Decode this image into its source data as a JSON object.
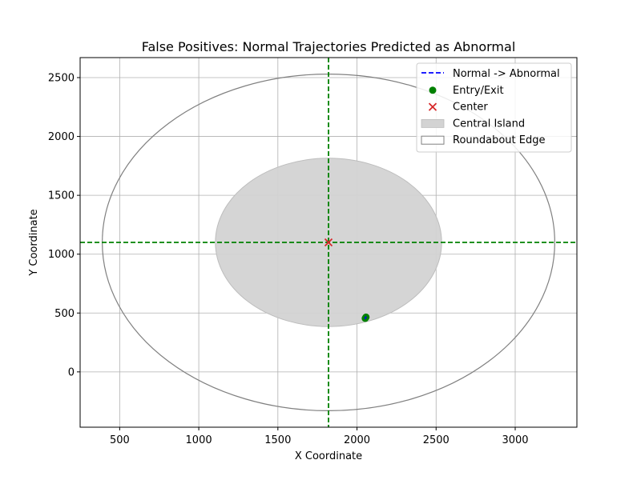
{
  "chart_data": {
    "type": "scatter",
    "title": "False Positives: Normal Trajectories Predicted as Abnormal",
    "xlabel": "X Coordinate",
    "ylabel": "Y Coordinate",
    "xlim": [
      250,
      3390
    ],
    "ylim": [
      -470,
      2670
    ],
    "xticks": [
      500,
      1000,
      1500,
      2000,
      2500,
      3000
    ],
    "yticks": [
      0,
      500,
      1000,
      1500,
      2000,
      2500
    ],
    "grid": true,
    "legend_position": "top-right",
    "center": {
      "x": 1820,
      "y": 1100
    },
    "central_island": {
      "cx": 1820,
      "cy": 1100,
      "rx": 715,
      "ry": 715
    },
    "roundabout_edge": {
      "cx": 1820,
      "cy": 1100,
      "rx": 1430,
      "ry": 1430
    },
    "center_lines": {
      "x": 1820,
      "y": 1100
    },
    "series": [
      {
        "name": "Normal -> Abnormal",
        "kind": "line",
        "color": "#0000ff",
        "points": [
          [
            2050,
            450
          ],
          [
            2058,
            470
          ]
        ]
      },
      {
        "name": "Entry/Exit",
        "kind": "scatter",
        "color": "#008000",
        "points": [
          [
            2052,
            455
          ],
          [
            2057,
            465
          ]
        ]
      },
      {
        "name": "Center",
        "kind": "marker",
        "color": "#d62728",
        "points": [
          [
            1820,
            1100
          ]
        ]
      }
    ],
    "legend": [
      {
        "label": "Normal -> Abnormal",
        "kind": "dash-line",
        "color": "#0000ff"
      },
      {
        "label": "Entry/Exit",
        "kind": "dot",
        "color": "#008000"
      },
      {
        "label": "Center",
        "kind": "cross",
        "color": "#d62728"
      },
      {
        "label": "Central Island",
        "kind": "patch",
        "color": "#d3d3d3"
      },
      {
        "label": "Roundabout Edge",
        "kind": "patch-outline",
        "color": "#808080"
      }
    ],
    "colors": {
      "centerline": "#008000",
      "island_fill": "#d3d3d3",
      "island_stroke": "#bdbdbd",
      "edge_stroke": "#808080",
      "grid": "#b0b0b0"
    }
  }
}
